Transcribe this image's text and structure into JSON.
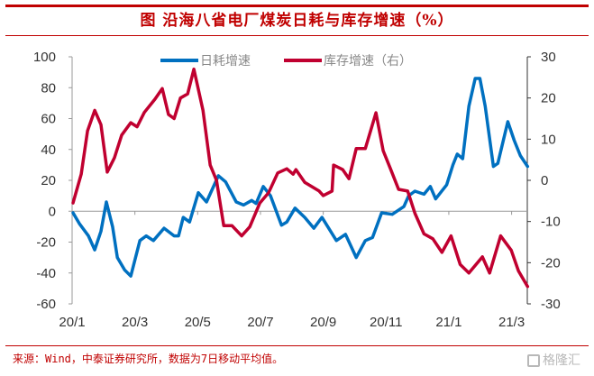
{
  "title": "图  沿海八省电厂煤炭日耗与库存增速（%）",
  "source": "来源：Wind，中泰证券研究所，数据为7日移动平均值。",
  "watermark": "格隆汇",
  "chart_data": {
    "type": "line",
    "title": "图  沿海八省电厂煤炭日耗与库存增速（%）",
    "xlabel": "",
    "ylabel": "",
    "x_ticks": [
      "20/1",
      "20/3",
      "20/5",
      "20/7",
      "20/9",
      "20/11",
      "21/1",
      "21/3"
    ],
    "x_unit": "months since 20/1",
    "x_range": [
      0,
      14.5
    ],
    "y_left": {
      "range": [
        -60,
        100
      ],
      "ticks": [
        100,
        80,
        60,
        40,
        20,
        0,
        -20,
        -40,
        -60
      ]
    },
    "y_right": {
      "range": [
        -30,
        30
      ],
      "ticks": [
        30,
        20,
        10,
        0,
        -10,
        -20,
        -30
      ]
    },
    "grid": false,
    "legend": {
      "position": "top-center",
      "entries": [
        "日耗增速",
        "库存增速（右）"
      ]
    },
    "series": [
      {
        "name": "日耗增速",
        "axis": "left",
        "color": "#0070c0",
        "points": [
          [
            0.03,
            -1
          ],
          [
            0.23,
            -8
          ],
          [
            0.52,
            -16
          ],
          [
            0.72,
            -25
          ],
          [
            0.92,
            -13
          ],
          [
            1.09,
            6
          ],
          [
            1.29,
            -10
          ],
          [
            1.44,
            -30
          ],
          [
            1.67,
            -38
          ],
          [
            1.87,
            -42
          ],
          [
            2.16,
            -19
          ],
          [
            2.36,
            -16
          ],
          [
            2.59,
            -19
          ],
          [
            2.93,
            -11
          ],
          [
            3.25,
            -16
          ],
          [
            3.39,
            -16
          ],
          [
            3.54,
            -4
          ],
          [
            3.74,
            -7
          ],
          [
            4.02,
            12
          ],
          [
            4.28,
            6
          ],
          [
            4.66,
            23
          ],
          [
            4.89,
            19
          ],
          [
            5.23,
            6
          ],
          [
            5.46,
            4
          ],
          [
            5.72,
            7
          ],
          [
            5.86,
            5
          ],
          [
            6.09,
            16
          ],
          [
            6.32,
            10
          ],
          [
            6.67,
            -9
          ],
          [
            6.84,
            -7
          ],
          [
            7.1,
            2
          ],
          [
            7.41,
            -4
          ],
          [
            7.7,
            -11
          ],
          [
            7.96,
            -4
          ],
          [
            8.42,
            -19
          ],
          [
            8.71,
            -15
          ],
          [
            9.05,
            -30
          ],
          [
            9.34,
            -19
          ],
          [
            9.57,
            -17
          ],
          [
            9.86,
            -1
          ],
          [
            10.2,
            -2
          ],
          [
            10.57,
            3
          ],
          [
            10.72,
            10
          ],
          [
            10.92,
            13
          ],
          [
            11.21,
            11
          ],
          [
            11.41,
            16
          ],
          [
            11.58,
            8
          ],
          [
            11.93,
            17
          ],
          [
            12.13,
            30
          ],
          [
            12.27,
            37
          ],
          [
            12.44,
            34
          ],
          [
            12.64,
            68
          ],
          [
            12.84,
            86
          ],
          [
            12.99,
            86
          ],
          [
            13.16,
            68
          ],
          [
            13.42,
            29
          ],
          [
            13.56,
            31
          ],
          [
            13.88,
            58
          ],
          [
            14.08,
            46
          ],
          [
            14.28,
            36
          ],
          [
            14.51,
            29
          ]
        ]
      },
      {
        "name": "库存增速（右）",
        "axis": "right",
        "color": "#c00030",
        "points": [
          [
            0.03,
            -5.5
          ],
          [
            0.29,
            1.5
          ],
          [
            0.49,
            12
          ],
          [
            0.72,
            17
          ],
          [
            0.92,
            13.5
          ],
          [
            1.12,
            2
          ],
          [
            1.35,
            5.5
          ],
          [
            1.58,
            11
          ],
          [
            1.87,
            14
          ],
          [
            2.07,
            13
          ],
          [
            2.3,
            16.5
          ],
          [
            2.64,
            19.7
          ],
          [
            2.87,
            22.3
          ],
          [
            3.07,
            16
          ],
          [
            3.25,
            15
          ],
          [
            3.45,
            20
          ],
          [
            3.68,
            21
          ],
          [
            3.88,
            27
          ],
          [
            4.17,
            17
          ],
          [
            4.4,
            3.7
          ],
          [
            4.6,
            0
          ],
          [
            4.83,
            -11
          ],
          [
            5.09,
            -11
          ],
          [
            5.4,
            -13.5
          ],
          [
            5.66,
            -11.3
          ],
          [
            5.98,
            -5.5
          ],
          [
            6.26,
            -3
          ],
          [
            6.55,
            1.8
          ],
          [
            6.84,
            2.8
          ],
          [
            7.04,
            1.5
          ],
          [
            7.13,
            2.6
          ],
          [
            7.41,
            -0.5
          ],
          [
            7.87,
            -2.6
          ],
          [
            8.0,
            -3.7
          ],
          [
            8.28,
            -2.6
          ],
          [
            8.33,
            3.7
          ],
          [
            8.62,
            2.6
          ],
          [
            8.82,
            0.4
          ],
          [
            9.05,
            7.7
          ],
          [
            9.34,
            7.7
          ],
          [
            9.68,
            16.4
          ],
          [
            9.91,
            7.2
          ],
          [
            10.14,
            2.8
          ],
          [
            10.4,
            -2.2
          ],
          [
            10.69,
            -2.6
          ],
          [
            10.92,
            -8
          ],
          [
            11.21,
            -13
          ],
          [
            11.49,
            -14.2
          ],
          [
            11.78,
            -17.5
          ],
          [
            12.07,
            -13.5
          ],
          [
            12.36,
            -20.4
          ],
          [
            12.64,
            -22.5
          ],
          [
            13.07,
            -18.6
          ],
          [
            13.3,
            -22.5
          ],
          [
            13.65,
            -13.5
          ],
          [
            13.99,
            -17
          ],
          [
            14.22,
            -22
          ],
          [
            14.51,
            -25.8
          ]
        ]
      }
    ]
  }
}
